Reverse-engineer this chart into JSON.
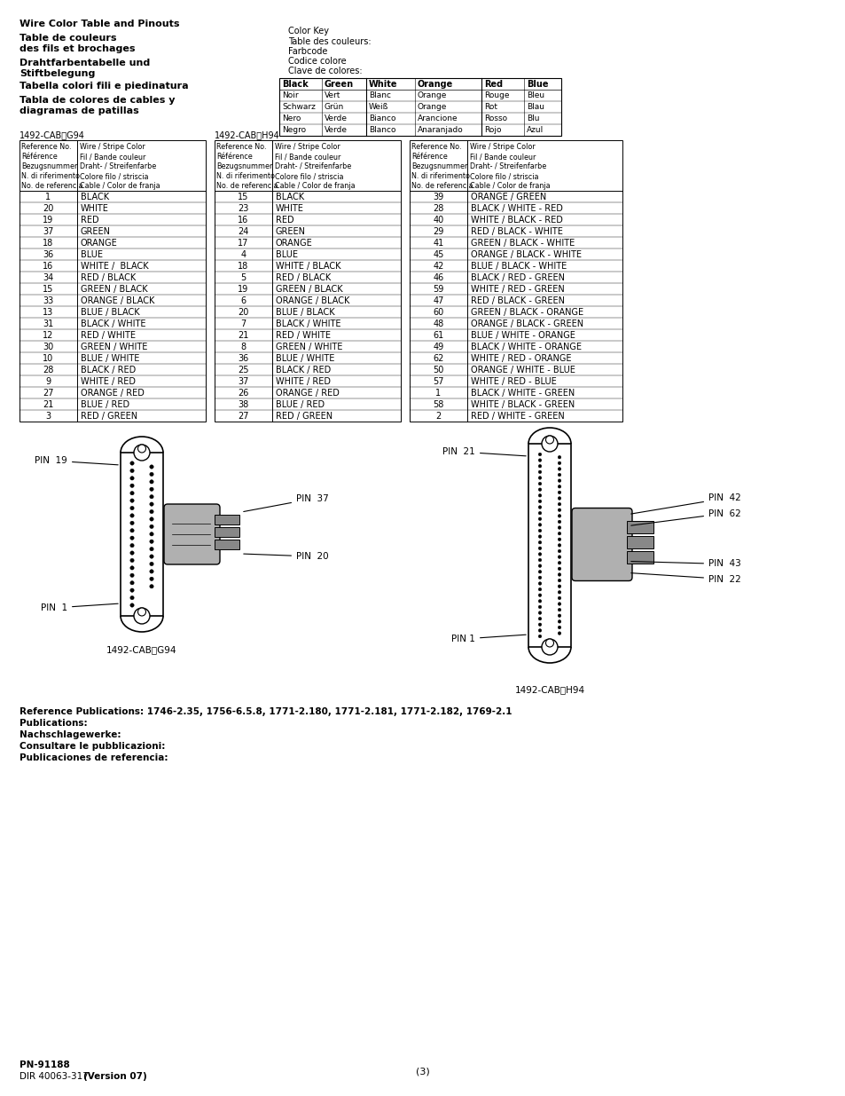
{
  "title_line1": "Wire Color Table and Pinouts",
  "title_line2": "Table de couleurs",
  "title_line3": "des fils et brochages",
  "title_line4": "Drahtfarbentabelle und",
  "title_line5": "Stiftbelegung",
  "title_line6": "Tabella colori fili e piedinatura",
  "title_line7": "Tabla de colores de cables y",
  "title_line8": "diagramas de patillas",
  "color_key_label": "Color Key",
  "color_key_lines": [
    "Table des couleurs:",
    "Farbcode",
    "Codice colore",
    "Clave de colores:"
  ],
  "color_headers": [
    "Black",
    "Green",
    "White",
    "Orange",
    "Red",
    "Blue"
  ],
  "color_table_rows": [
    [
      "Noir",
      "Vert",
      "Blanc",
      "Orange",
      "Rouge",
      "Bleu"
    ],
    [
      "Schwarz",
      "Grün",
      "Weiß",
      "Orange",
      "Rot",
      "Blau"
    ],
    [
      "Nero",
      "Verde",
      "Bianco",
      "Arancione",
      "Rosso",
      "Blu"
    ],
    [
      "Negro",
      "Verde",
      "Blanco",
      "Anaranjado",
      "Rojo",
      "Azul"
    ]
  ],
  "table1_title": "1492-CABⓈG94",
  "table1_data": [
    [
      "1",
      "BLACK"
    ],
    [
      "20",
      "WHITE"
    ],
    [
      "19",
      "RED"
    ],
    [
      "37",
      "GREEN"
    ],
    [
      "18",
      "ORANGE"
    ],
    [
      "36",
      "BLUE"
    ],
    [
      "16",
      "WHITE /  BLACK"
    ],
    [
      "34",
      "RED / BLACK"
    ],
    [
      "15",
      "GREEN / BLACK"
    ],
    [
      "33",
      "ORANGE / BLACK"
    ],
    [
      "13",
      "BLUE / BLACK"
    ],
    [
      "31",
      "BLACK / WHITE"
    ],
    [
      "12",
      "RED / WHITE"
    ],
    [
      "30",
      "GREEN / WHITE"
    ],
    [
      "10",
      "BLUE / WHITE"
    ],
    [
      "28",
      "BLACK / RED"
    ],
    [
      "9",
      "WHITE / RED"
    ],
    [
      "27",
      "ORANGE / RED"
    ],
    [
      "21",
      "BLUE / RED"
    ],
    [
      "3",
      "RED / GREEN"
    ]
  ],
  "table2_title": "1492-CABⓈH94",
  "table2_data": [
    [
      "15",
      "BLACK"
    ],
    [
      "23",
      "WHITE"
    ],
    [
      "16",
      "RED"
    ],
    [
      "24",
      "GREEN"
    ],
    [
      "17",
      "ORANGE"
    ],
    [
      "4",
      "BLUE"
    ],
    [
      "18",
      "WHITE / BLACK"
    ],
    [
      "5",
      "RED / BLACK"
    ],
    [
      "19",
      "GREEN / BLACK"
    ],
    [
      "6",
      "ORANGE / BLACK"
    ],
    [
      "20",
      "BLUE / BLACK"
    ],
    [
      "7",
      "BLACK / WHITE"
    ],
    [
      "21",
      "RED / WHITE"
    ],
    [
      "8",
      "GREEN / WHITE"
    ],
    [
      "36",
      "BLUE / WHITE"
    ],
    [
      "25",
      "BLACK / RED"
    ],
    [
      "37",
      "WHITE / RED"
    ],
    [
      "26",
      "ORANGE / RED"
    ],
    [
      "38",
      "BLUE / RED"
    ],
    [
      "27",
      "RED / GREEN"
    ]
  ],
  "table3_data": [
    [
      "39",
      "ORANGE / GREEN"
    ],
    [
      "28",
      "BLACK / WHITE - RED"
    ],
    [
      "40",
      "WHITE / BLACK - RED"
    ],
    [
      "29",
      "RED / BLACK - WHITE"
    ],
    [
      "41",
      "GREEN / BLACK - WHITE"
    ],
    [
      "45",
      "ORANGE / BLACK - WHITE"
    ],
    [
      "42",
      "BLUE / BLACK - WHITE"
    ],
    [
      "46",
      "BLACK / RED - GREEN"
    ],
    [
      "59",
      "WHITE / RED - GREEN"
    ],
    [
      "47",
      "RED / BLACK - GREEN"
    ],
    [
      "60",
      "GREEN / BLACK - ORANGE"
    ],
    [
      "48",
      "ORANGE / BLACK - GREEN"
    ],
    [
      "61",
      "BLUE / WHITE - ORANGE"
    ],
    [
      "49",
      "BLACK / WHITE - ORANGE"
    ],
    [
      "62",
      "WHITE / RED - ORANGE"
    ],
    [
      "50",
      "ORANGE / WHITE - BLUE"
    ],
    [
      "57",
      "WHITE / RED - BLUE"
    ],
    [
      "1",
      "BLACK / WHITE - GREEN"
    ],
    [
      "58",
      "WHITE / BLACK - GREEN"
    ],
    [
      "2",
      "RED / WHITE - GREEN"
    ]
  ],
  "diagram1_label": "1492-CABⓈG94",
  "diagram2_label": "1492-CABⓈH94",
  "ref_pub_line": "Reference Publications: 1746-2.35, 1756-6.5.8, 1771-2.180, 1771-2.181, 1771-2.182, 1769-2.1",
  "pub_lines": [
    "Publications:",
    "Nachschlagewerke:",
    "Consultare le pubblicazioni:",
    "Publicaciones de referencia:"
  ],
  "footer_line1": "PN-91188",
  "footer_line2_normal": "DIR 40063-317 ",
  "footer_line2_bold": "(Version 07)",
  "page_num": "(3)"
}
